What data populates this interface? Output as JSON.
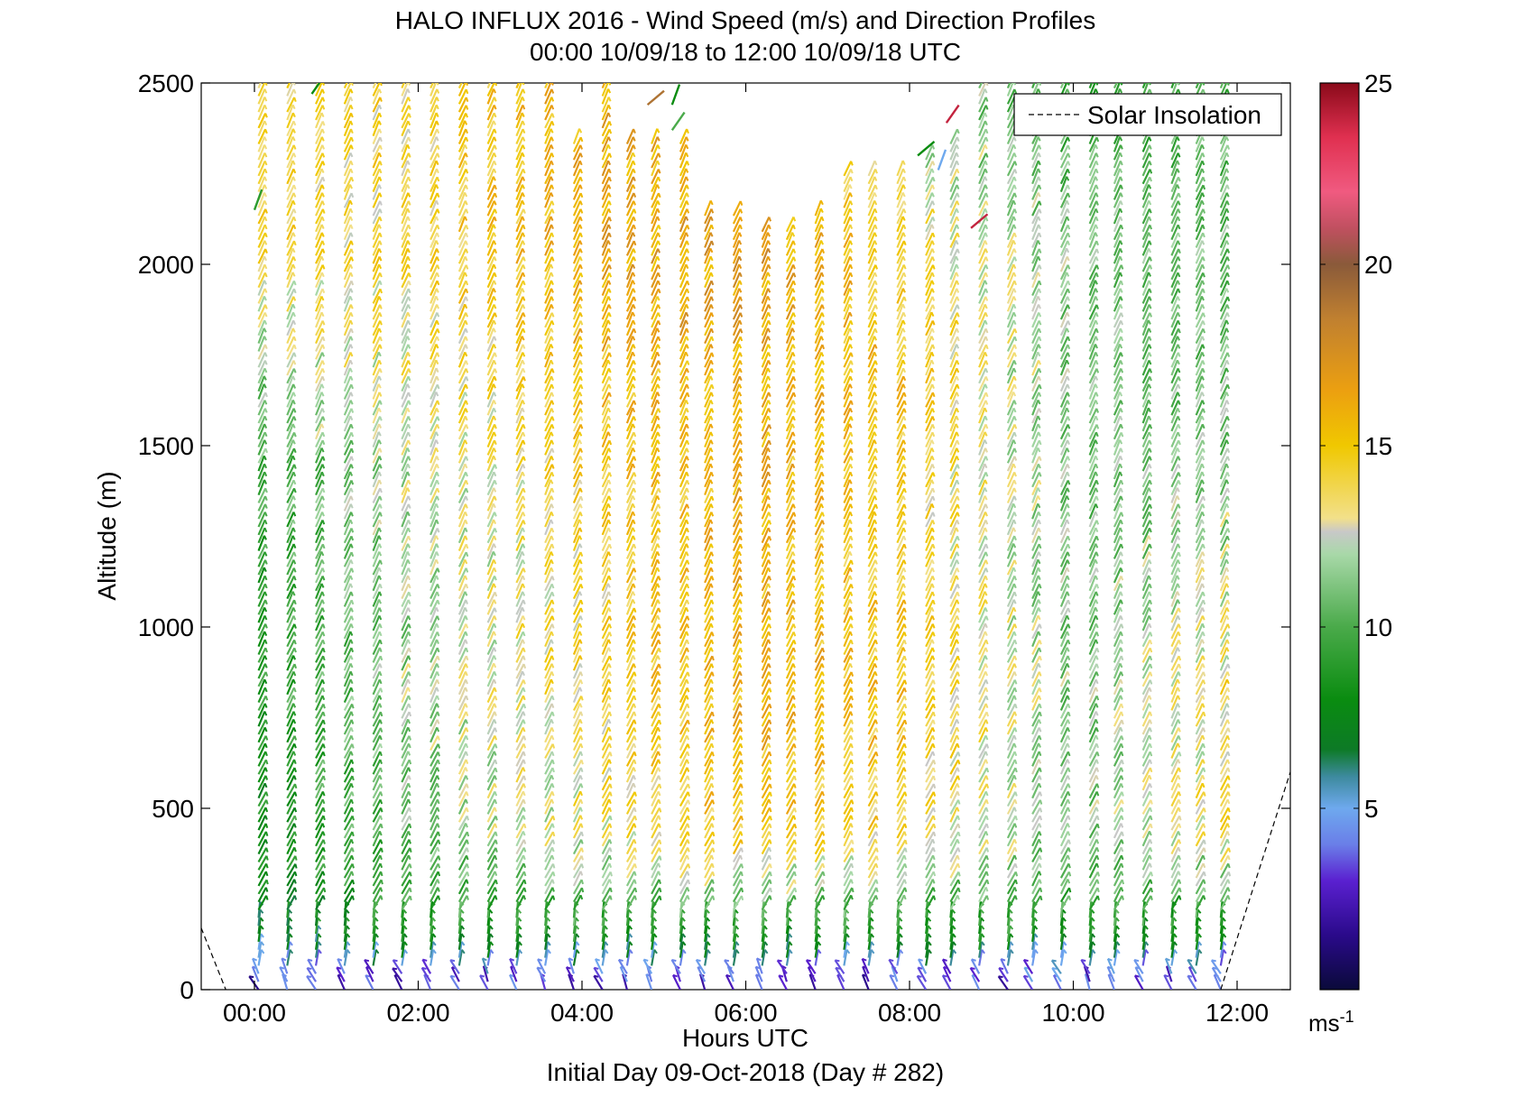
{
  "chart_data": {
    "type": "scatter",
    "subtype": "wind-barb profile",
    "title": "HALO INFLUX 2016 - Wind Speed (m/s) and Direction Profiles",
    "subtitle": "00:00 10/09/18 to 12:00 10/09/18  UTC",
    "xlabel": "Hours UTC",
    "ylabel": "Altitude (m)",
    "footer": "Initial Day 09-Oct-2018 (Day # 282)",
    "xlim": [
      -0.65,
      12.65
    ],
    "ylim": [
      0,
      2500
    ],
    "xticks": [
      0,
      2,
      4,
      6,
      8,
      10,
      12
    ],
    "xtick_labels": [
      "00:00",
      "02:00",
      "04:00",
      "06:00",
      "08:00",
      "10:00",
      "12:00"
    ],
    "yticks": [
      0,
      500,
      1000,
      1500,
      2000,
      2500
    ],
    "ytick_labels": [
      "0",
      "500",
      "1000",
      "1500",
      "2000",
      "2500"
    ],
    "legend": {
      "entries": [
        "Solar Insolation"
      ],
      "position": "top-right"
    },
    "colorbar": {
      "label": "ms-1",
      "range": [
        0,
        25
      ],
      "ticks": [
        5,
        10,
        15,
        20,
        25
      ],
      "tick_labels": [
        "5",
        "10",
        "15",
        "20",
        "25"
      ]
    },
    "profile_times_hours": [
      0.05,
      0.4,
      0.75,
      1.1,
      1.45,
      1.8,
      2.15,
      2.5,
      2.85,
      3.2,
      3.55,
      3.9,
      4.25,
      4.55,
      4.85,
      5.2,
      5.5,
      5.85,
      6.2,
      6.5,
      6.85,
      7.2,
      7.5,
      7.85,
      8.2,
      8.5,
      8.85,
      9.2,
      9.5,
      9.85,
      10.2,
      10.5,
      10.85,
      11.2,
      11.5,
      11.8
    ],
    "profile_top_m": [
      2500,
      2500,
      2500,
      2500,
      2500,
      2500,
      2500,
      2500,
      2500,
      2500,
      2500,
      2350,
      2500,
      2350,
      2350,
      2350,
      2150,
      2150,
      2100,
      2100,
      2150,
      2250,
      2250,
      2250,
      2300,
      2350,
      2500,
      2500,
      2500,
      2500,
      2500,
      2500,
      2500,
      2500,
      2500,
      2500
    ],
    "isolated_barbs": [
      {
        "t": 0.0,
        "alt": 2150,
        "speed": 9
      },
      {
        "t": 0.7,
        "alt": 2470,
        "speed": 8
      },
      {
        "t": 4.8,
        "alt": 2440,
        "speed": 19
      },
      {
        "t": 5.1,
        "alt": 2440,
        "speed": 8
      },
      {
        "t": 5.1,
        "alt": 2370,
        "speed": 10
      },
      {
        "t": 8.1,
        "alt": 2300,
        "speed": 8
      },
      {
        "t": 8.35,
        "alt": 2260,
        "speed": 5
      },
      {
        "t": 8.45,
        "alt": 2390,
        "speed": 24
      },
      {
        "t": 8.75,
        "alt": 2100,
        "speed": 24
      }
    ],
    "wind_speed_by_hour_and_altitude_ms": {
      "altitudes_m": [
        0,
        40,
        150,
        400,
        800,
        1200,
        1600,
        2000,
        2400
      ],
      "times_hours": [
        0,
        2,
        4,
        6,
        8,
        10,
        12
      ],
      "speed": [
        [
          3,
          4,
          7,
          8,
          9,
          9,
          11,
          14,
          14
        ],
        [
          3,
          4,
          9,
          11,
          12,
          12,
          13,
          14,
          14
        ],
        [
          3,
          4,
          9,
          13,
          14,
          14,
          15,
          16,
          16
        ],
        [
          3,
          4,
          9,
          15,
          16,
          16,
          16,
          17,
          15
        ],
        [
          3,
          4,
          9,
          14,
          15,
          14,
          15,
          14,
          12
        ],
        [
          3,
          4,
          9,
          11,
          11,
          11,
          11,
          11,
          10
        ],
        [
          3,
          4,
          8,
          14,
          14,
          12,
          11,
          11,
          10
        ]
      ],
      "direction_note": "barbs point from lower-left to upper-right (southwesterly flow) at altitude; backing to northerly near the surface"
    },
    "solar_insolation_hours": [
      [
        -0.65,
        170
      ],
      [
        -0.35,
        0
      ],
      [
        11.8,
        0
      ],
      [
        12.65,
        600
      ]
    ]
  }
}
